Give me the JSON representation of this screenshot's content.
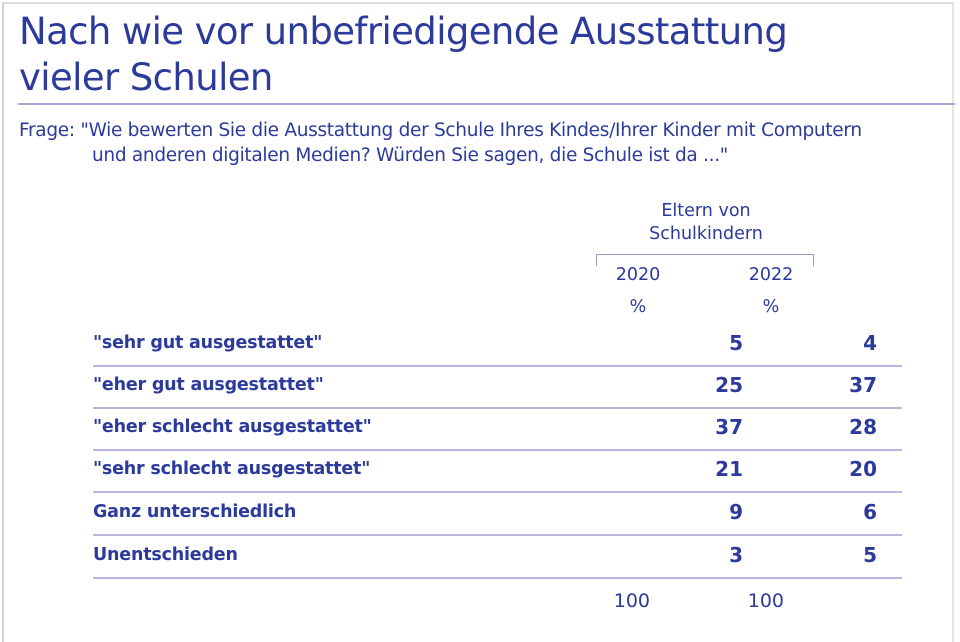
{
  "title": {
    "line1": "Nach wie vor unbefriedigende Ausstattung",
    "line2": "vieler Schulen"
  },
  "question": {
    "line1": "Frage: \"Wie bewerten Sie die Ausstattung der Schule Ihres Kindes/Ihrer Kinder mit Computern",
    "line2": "und anderen digitalen Medien? Würden Sie sagen, die Schule ist da ...\""
  },
  "table": {
    "group_header": {
      "line1": "Eltern von",
      "line2": "Schulkindern"
    },
    "columns": [
      {
        "year": "2020",
        "unit": "%"
      },
      {
        "year": "2022",
        "unit": "%"
      }
    ],
    "rows": [
      {
        "label": "\"sehr gut ausgestattet\"",
        "v2020": "5",
        "v2022": "4"
      },
      {
        "label": "\"eher gut ausgestattet\"",
        "v2020": "25",
        "v2022": "37"
      },
      {
        "label": "\"eher schlecht ausgestattet\"",
        "v2020": "37",
        "v2022": "28"
      },
      {
        "label": "\"sehr schlecht ausgestattet\"",
        "v2020": "21",
        "v2022": "20"
      },
      {
        "label": "Ganz unterschiedlich",
        "v2020": "9",
        "v2022": "6"
      },
      {
        "label": "Unentschieden",
        "v2020": "3",
        "v2022": "5"
      }
    ],
    "totals": {
      "v2020": "100",
      "v2022": "100"
    }
  },
  "colors": {
    "text": "#2b3a9b",
    "rule": "#a9a6d5",
    "separator": "#b9b8dc"
  }
}
